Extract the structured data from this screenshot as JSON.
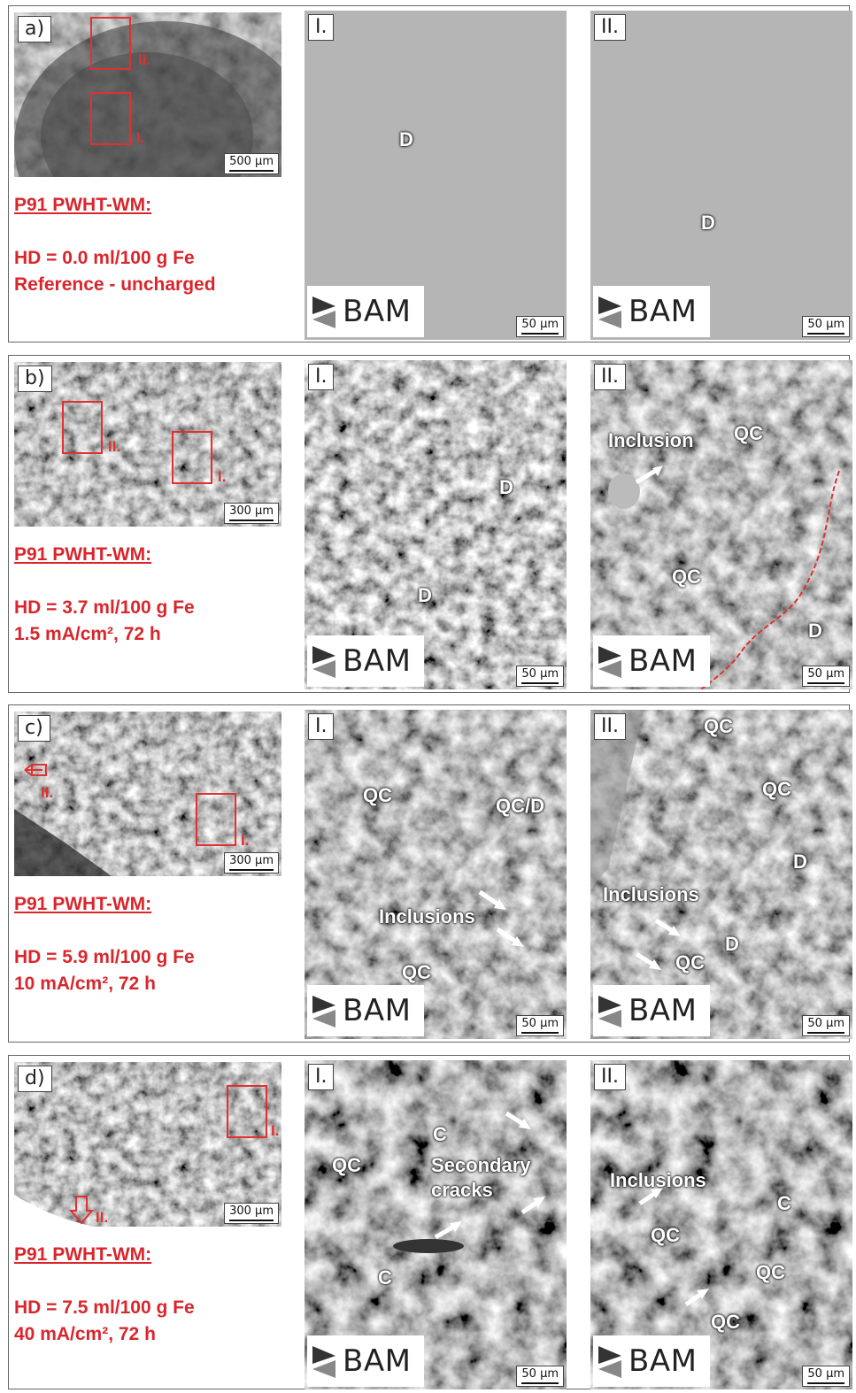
{
  "panels": [
    {
      "id": "a",
      "tag": "a)",
      "scale": "500 µm",
      "region_labels": [
        "II.",
        "I."
      ],
      "caption_title": "P91 PWHT-WM:",
      "caption_line1": "HD = 0.0 ml/100 g Fe",
      "caption_line2": "Reference - uncharged",
      "sem": [
        {
          "tag": "I.",
          "scale": "50 µm",
          "logo": "BAM",
          "labels": [
            "D"
          ]
        },
        {
          "tag": "II.",
          "scale": "50 µm",
          "logo": "BAM",
          "labels": [
            "D"
          ]
        }
      ]
    },
    {
      "id": "b",
      "tag": "b)",
      "scale": "300 µm",
      "region_labels": [
        "II.",
        "I."
      ],
      "caption_title": "P91 PWHT-WM:",
      "caption_line1": "HD = 3.7 ml/100 g Fe",
      "caption_line2": "1.5 mA/cm², 72 h",
      "sem": [
        {
          "tag": "I.",
          "scale": "50 µm",
          "logo": "BAM",
          "labels": [
            "D",
            "D"
          ]
        },
        {
          "tag": "II.",
          "scale": "50 µm",
          "logo": "BAM",
          "labels": [
            "Inclusion",
            "QC",
            "QC",
            "D"
          ]
        }
      ]
    },
    {
      "id": "c",
      "tag": "c)",
      "scale": "300 µm",
      "region_labels": [
        "II.",
        "I."
      ],
      "caption_title": "P91 PWHT-WM:",
      "caption_line1": "HD = 5.9 ml/100 g Fe",
      "caption_line2": "10 mA/cm², 72 h",
      "sem": [
        {
          "tag": "I.",
          "scale": "50 µm",
          "logo": "BAM",
          "labels": [
            "QC",
            "QC/D",
            "Inclusions",
            "QC"
          ]
        },
        {
          "tag": "II.",
          "scale": "50 µm",
          "logo": "BAM",
          "labels": [
            "QC",
            "QC",
            "D",
            "Inclusions",
            "D",
            "QC"
          ]
        }
      ]
    },
    {
      "id": "d",
      "tag": "d)",
      "scale": "300 µm",
      "region_labels": [
        "I.",
        "II."
      ],
      "caption_title": "P91 PWHT-WM:",
      "caption_line1": "HD = 7.5 ml/100 g Fe",
      "caption_line2": "40 mA/cm², 72 h",
      "sem": [
        {
          "tag": "I.",
          "scale": "50 µm",
          "logo": "BAM",
          "labels": [
            "C",
            "QC",
            "Secondary",
            "cracks",
            "C"
          ]
        },
        {
          "tag": "II.",
          "scale": "50 µm",
          "logo": "BAM",
          "labels": [
            "Inclusions",
            "C",
            "QC",
            "QC",
            "QC"
          ]
        }
      ]
    }
  ]
}
